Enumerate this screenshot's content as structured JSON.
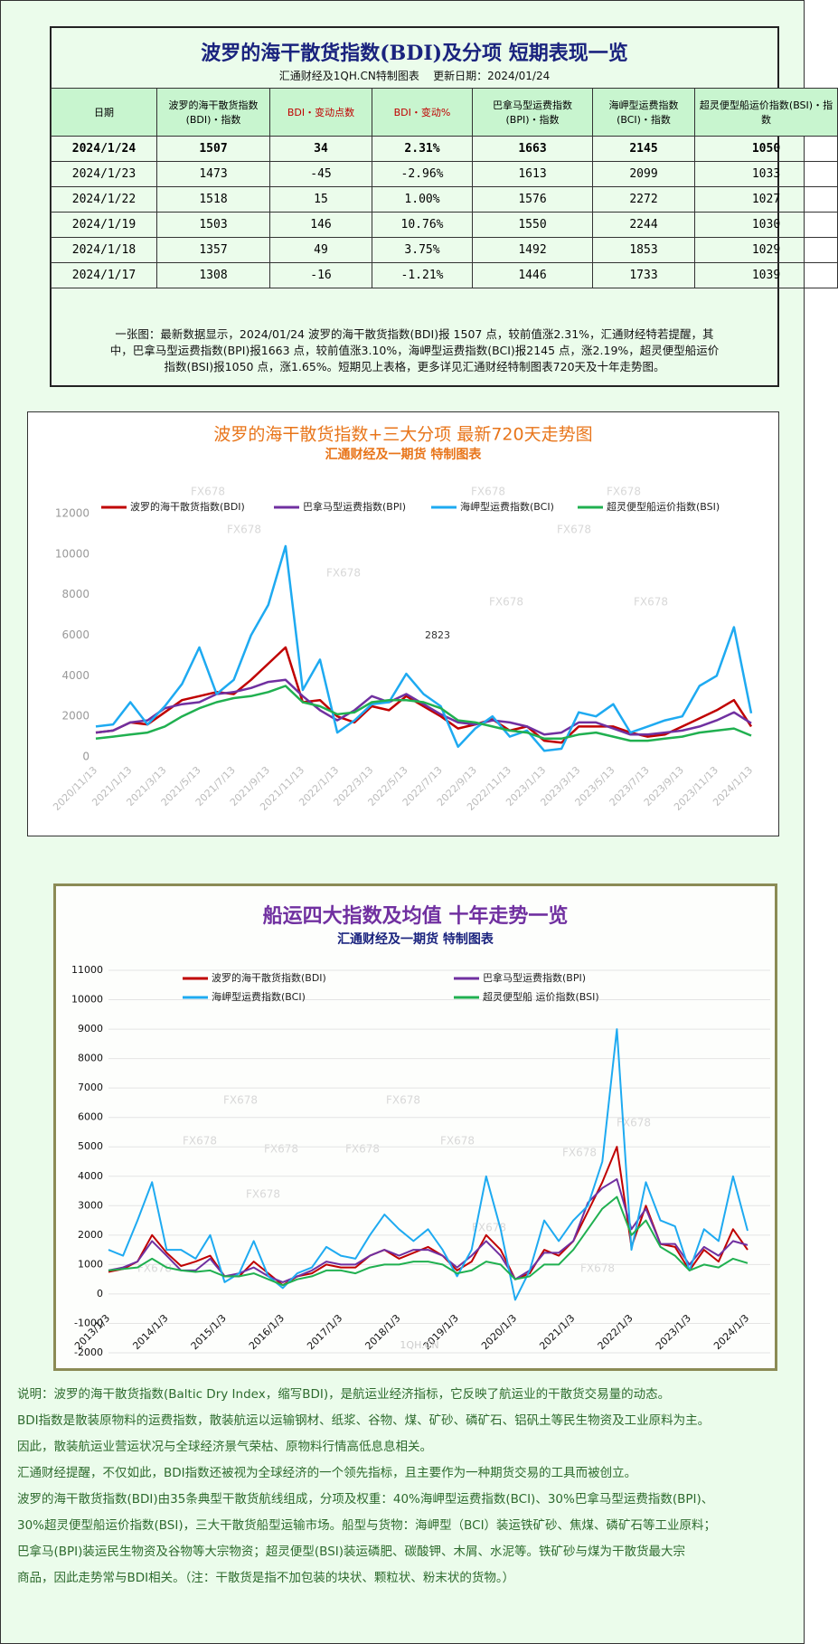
{
  "header": {
    "title": "波罗的海干散货指数(BDI)及分项 短期表现一览",
    "subtitle": "汇通财经及1QH.CN特制图表    更新日期：2024/01/24"
  },
  "table": {
    "columns": [
      "日期",
      "波罗的海干散货指数(BDI)・指数",
      "BDI・变动点数",
      "BDI・变动%",
      "巴拿马型运费指数(BPI)・指数",
      "海岬型运费指数(BCI)・指数",
      "超灵便型船运价指数(BSI)・指数"
    ],
    "rows": [
      [
        "2024/1/24",
        "1507",
        "34",
        "2.31%",
        "1663",
        "2145",
        "1050"
      ],
      [
        "2024/1/23",
        "1473",
        "-45",
        "-2.96%",
        "1613",
        "2099",
        "1033"
      ],
      [
        "2024/1/22",
        "1518",
        "15",
        "1.00%",
        "1576",
        "2272",
        "1027"
      ],
      [
        "2024/1/19",
        "1503",
        "146",
        "10.76%",
        "1550",
        "2244",
        "1030"
      ],
      [
        "2024/1/18",
        "1357",
        "49",
        "3.75%",
        "1492",
        "1853",
        "1029"
      ],
      [
        "2024/1/17",
        "1308",
        "-16",
        "-1.21%",
        "1446",
        "1733",
        "1039"
      ]
    ]
  },
  "summary": [
    "一张图：最新数据显示，2024/01/24 波罗的海干散货指数(BDI)报 1507 点，较前值涨2.31%，汇通财经特若提醒，其",
    "中，巴拿马型运费指数(BPI)报1663 点，较前值涨3.10%，海岬型运费指数(BCI)报2145 点，涨2.19%，超灵便型船运价",
    "指数(BSI)报1050 点，涨1.65%。短期见上表格，更多详见汇通财经特制图表720天及十年走势图。"
  ],
  "chart_data": [
    {
      "type": "line",
      "title": "波罗的海干散货指数+三大分项 最新720天走势图",
      "subtitle": "汇通财经及一期货  特制图表",
      "watermark": "FX678",
      "annotation": "2823",
      "grid": false,
      "categories": [
        "2020/11/13",
        null,
        "2021/1/13",
        null,
        "2021/3/13",
        null,
        "2021/5/13",
        null,
        "2021/7/13",
        null,
        "2021/9/13",
        null,
        "2021/11/13",
        null,
        "2022/1/13",
        null,
        "2022/3/13",
        null,
        "2022/5/13",
        null,
        "2022/7/13",
        null,
        "2022/9/13",
        null,
        "2022/11/13",
        null,
        "2023/1/13",
        null,
        "2023/3/13",
        null,
        "2023/5/13",
        null,
        "2023/7/13",
        null,
        "2023/9/13",
        null,
        "2023/11/13",
        null,
        "2024/1/13"
      ],
      "ylim": [
        0,
        12000
      ],
      "yticks": [
        0,
        2000,
        4000,
        6000,
        8000,
        10000,
        12000
      ],
      "series": [
        {
          "name": "波罗的海干散货指数(BDI)",
          "color": "#c00000",
          "values": [
            1200,
            1300,
            1700,
            1600,
            2200,
            2800,
            3000,
            3200,
            3100,
            3800,
            4600,
            5400,
            2700,
            2800,
            2000,
            1700,
            2500,
            2300,
            3000,
            2500,
            2000,
            1400,
            1600,
            1850,
            1300,
            1500,
            800,
            700,
            1500,
            1500,
            1500,
            1200,
            1000,
            1100,
            1500,
            1900,
            2300,
            2800,
            1500
          ]
        },
        {
          "name": "巴拿马型运费指数(BPI)",
          "color": "#7030a0",
          "values": [
            1200,
            1300,
            1700,
            1800,
            2400,
            2600,
            2700,
            3100,
            3200,
            3400,
            3700,
            3800,
            3000,
            2300,
            1800,
            2300,
            3000,
            2700,
            3100,
            2600,
            2100,
            1700,
            1600,
            1800,
            1700,
            1500,
            1100,
            1200,
            1700,
            1700,
            1400,
            1100,
            1100,
            1200,
            1300,
            1500,
            1800,
            2200,
            1660
          ]
        },
        {
          "name": "海岬型运费指数(BCI)",
          "color": "#1eaaf1",
          "values": [
            1500,
            1600,
            2700,
            1600,
            2500,
            3600,
            5400,
            3100,
            3800,
            6000,
            7500,
            10400,
            3300,
            4800,
            1200,
            1800,
            2600,
            2700,
            4100,
            3100,
            2500,
            500,
            1400,
            2000,
            1000,
            1300,
            300,
            400,
            2200,
            2000,
            2600,
            1200,
            1500,
            1800,
            2000,
            3500,
            4000,
            6400,
            2150
          ]
        },
        {
          "name": "超灵便型船运价指数(BSI)",
          "color": "#20b050",
          "values": [
            900,
            1000,
            1100,
            1200,
            1500,
            2000,
            2400,
            2700,
            2900,
            3000,
            3200,
            3500,
            2700,
            2500,
            2100,
            2200,
            2700,
            2800,
            2800,
            2700,
            2400,
            1800,
            1700,
            1500,
            1300,
            1200,
            900,
            900,
            1100,
            1200,
            1000,
            800,
            800,
            900,
            1000,
            1200,
            1300,
            1400,
            1050
          ]
        }
      ]
    },
    {
      "type": "line",
      "title": "船运四大指数及均值 十年走势一览",
      "subtitle": "汇通财经及一期货 特制图表",
      "watermark": "FX678",
      "annotation": "1QH.CN",
      "grid": true,
      "categories": [
        "2013/1/3",
        null,
        null,
        null,
        "2014/1/3",
        null,
        null,
        null,
        "2015/1/3",
        null,
        null,
        null,
        "2016/1/3",
        null,
        null,
        null,
        "2017/1/3",
        null,
        null,
        null,
        "2018/1/3",
        null,
        null,
        null,
        "2019/1/3",
        null,
        null,
        null,
        "2020/1/3",
        null,
        null,
        null,
        "2021/1/3",
        null,
        null,
        null,
        "2022/1/3",
        null,
        null,
        null,
        "2023/1/3",
        null,
        null,
        null,
        "2024/1/3"
      ],
      "ylim": [
        -2000,
        11000
      ],
      "yticks": [
        -2000,
        -1000,
        0,
        1000,
        2000,
        3000,
        4000,
        5000,
        6000,
        7000,
        8000,
        9000,
        10000,
        11000
      ],
      "series": [
        {
          "name": "波罗的海干散货指数(BDI)",
          "color": "#c00000",
          "values": [
            750,
            850,
            1100,
            2000,
            1400,
            950,
            1100,
            1300,
            600,
            600,
            1100,
            700,
            300,
            600,
            700,
            1000,
            900,
            900,
            1300,
            1500,
            1200,
            1400,
            1600,
            1300,
            800,
            1100,
            2000,
            1500,
            500,
            700,
            1500,
            1300,
            1800,
            2800,
            3800,
            5000,
            1600,
            3000,
            1700,
            1600,
            800,
            1500,
            1100,
            2200,
            1500
          ]
        },
        {
          "name": "巴拿马型运费指数(BPI)",
          "color": "#7030a0",
          "values": [
            800,
            900,
            1100,
            1800,
            1300,
            800,
            800,
            1200,
            600,
            700,
            900,
            600,
            400,
            600,
            800,
            1100,
            1000,
            1000,
            1300,
            1500,
            1300,
            1500,
            1500,
            1300,
            900,
            1300,
            1800,
            1300,
            500,
            800,
            1400,
            1400,
            1800,
            3100,
            3600,
            3900,
            2200,
            2900,
            1700,
            1700,
            1000,
            1600,
            1300,
            1800,
            1660
          ]
        },
        {
          "name": "海岬型运费指数(BCI)",
          "color": "#1eaaf1",
          "values": [
            1500,
            1300,
            2500,
            3800,
            1500,
            1500,
            1200,
            2000,
            400,
            700,
            1800,
            600,
            200,
            700,
            900,
            1600,
            1300,
            1200,
            2000,
            2700,
            2200,
            1800,
            2200,
            1500,
            600,
            1500,
            4000,
            2200,
            -200,
            800,
            2500,
            1800,
            2500,
            3000,
            4500,
            9000,
            1500,
            3800,
            2500,
            2300,
            800,
            2200,
            1800,
            4000,
            2150
          ]
        },
        {
          "name": "超灵便型船 运价指数(BSI)",
          "color": "#20b050",
          "values": [
            800,
            850,
            900,
            1200,
            900,
            800,
            750,
            800,
            600,
            600,
            700,
            500,
            300,
            500,
            600,
            800,
            800,
            700,
            900,
            1000,
            1000,
            1100,
            1100,
            1000,
            700,
            800,
            1100,
            1000,
            500,
            600,
            1000,
            1000,
            1500,
            2200,
            2900,
            3300,
            2000,
            2500,
            1600,
            1300,
            800,
            1000,
            900,
            1200,
            1050
          ]
        }
      ]
    }
  ],
  "notes": [
    "说明：波罗的海干散货指数(Baltic Dry Index，缩写BDI)，是航运业经济指标，它反映了航运业的干散货交易量的动态。",
    "BDI指数是散装原物料的运费指数，散装航运以运输钢材、纸浆、谷物、煤、矿砂、磷矿石、铝矾土等民生物资及工业原料为主。",
    "因此，散装航运业营运状况与全球经济景气荣枯、原物料行情高低息息相关。",
    "汇通财经提醒，不仅如此，BDI指数还被视为全球经济的一个领先指标，且主要作为一种期货交易的工具而被创立。",
    "波罗的海干散货指数(BDI)由35条典型干散货航线组成，分项及权重：40%海岬型运费指数(BCI)、30%巴拿马型运费指数(BPI)、",
    "30%超灵便型船运价指数(BSI)，三大干散货船型运输市场。船型与货物：海岬型（BCI）装运铁矿砂、焦煤、磷矿石等工业原料；",
    "巴拿马(BPI)装运民生物资及谷物等大宗物资；超灵便型(BSI)装运磷肥、碳酸钾、木屑、水泥等。铁矿砂与煤为干散货最大宗",
    "商品，因此走势常与BDI相关。（注：干散货是指不加包装的块状、颗粒状、粉末状的货物。）"
  ]
}
